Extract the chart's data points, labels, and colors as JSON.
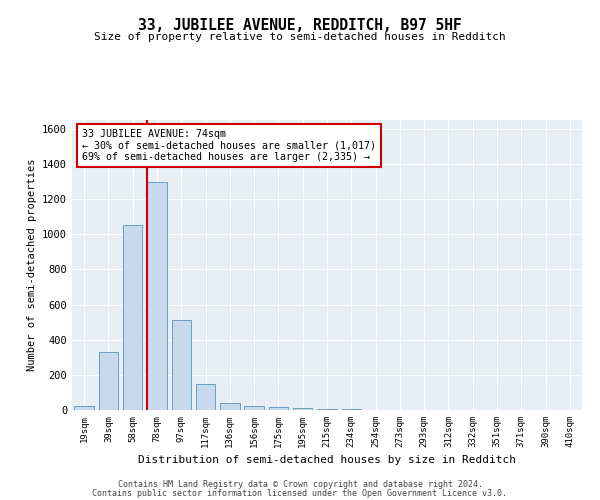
{
  "title": "33, JUBILEE AVENUE, REDDITCH, B97 5HF",
  "subtitle": "Size of property relative to semi-detached houses in Redditch",
  "xlabel": "Distribution of semi-detached houses by size in Redditch",
  "ylabel": "Number of semi-detached properties",
  "categories": [
    "19sqm",
    "39sqm",
    "58sqm",
    "78sqm",
    "97sqm",
    "117sqm",
    "136sqm",
    "156sqm",
    "175sqm",
    "195sqm",
    "215sqm",
    "234sqm",
    "254sqm",
    "273sqm",
    "293sqm",
    "312sqm",
    "332sqm",
    "351sqm",
    "371sqm",
    "390sqm",
    "410sqm"
  ],
  "values": [
    20,
    330,
    1050,
    1300,
    510,
    150,
    40,
    20,
    15,
    10,
    5,
    3,
    2,
    1,
    1,
    1,
    1,
    0,
    0,
    0,
    0
  ],
  "bar_color": "#c9d9ec",
  "bar_edge_color": "#6a9fc0",
  "vline_color": "#cc0000",
  "vline_index": 2.6,
  "annotation_text": "33 JUBILEE AVENUE: 74sqm\n← 30% of semi-detached houses are smaller (1,017)\n69% of semi-detached houses are larger (2,335) →",
  "annotation_box_color": "white",
  "annotation_box_edge": "#cc0000",
  "ylim": [
    0,
    1650
  ],
  "yticks": [
    0,
    200,
    400,
    600,
    800,
    1000,
    1200,
    1400,
    1600
  ],
  "background_color": "#e8eef5",
  "footer1": "Contains HM Land Registry data © Crown copyright and database right 2024.",
  "footer2": "Contains public sector information licensed under the Open Government Licence v3.0."
}
